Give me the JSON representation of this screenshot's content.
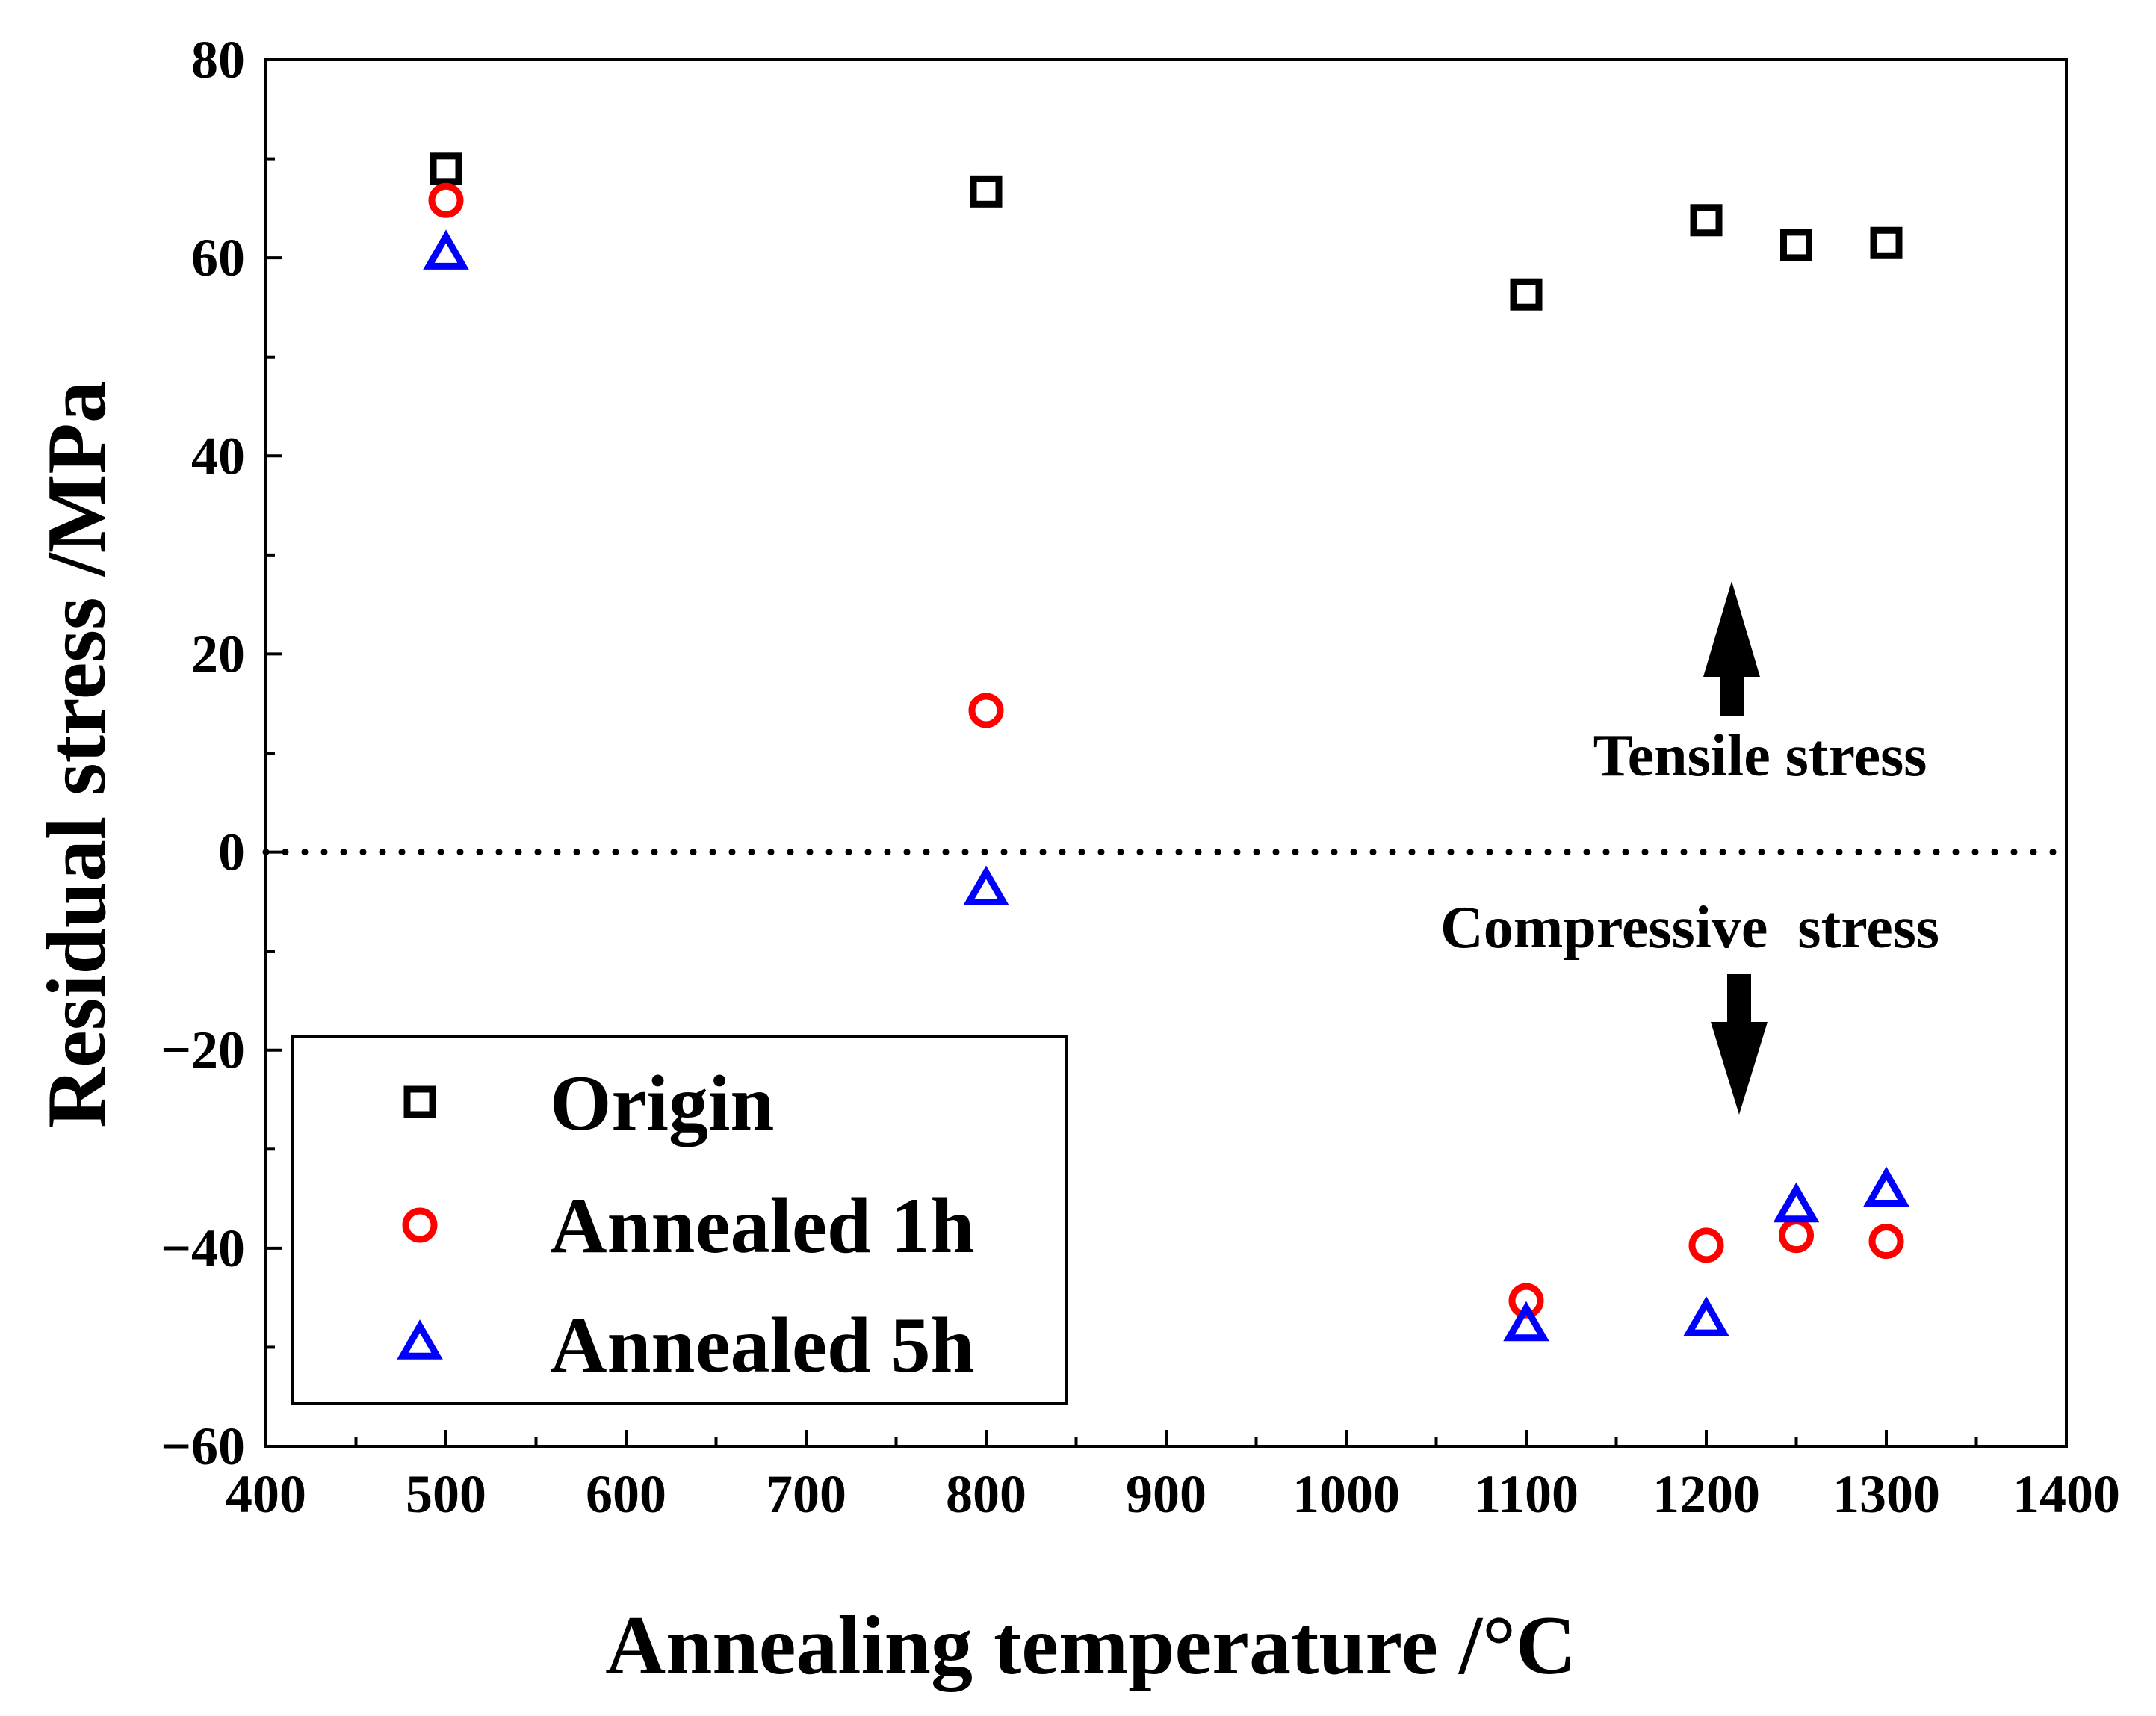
{
  "chart_data": {
    "type": "scatter",
    "xlabel": "Annealing temperature  /°C",
    "ylabel": "Residual stress /MPa",
    "xlim": [
      400,
      1400
    ],
    "ylim": [
      -60,
      80
    ],
    "x_major_ticks": [
      400,
      500,
      600,
      700,
      800,
      900,
      1000,
      1100,
      1200,
      1300,
      1400
    ],
    "x_minor_step": 50,
    "y_major_ticks": [
      -60,
      -40,
      -20,
      0,
      20,
      40,
      60,
      80
    ],
    "y_tick_labels": [
      "−60",
      "−40",
      "−20",
      "0",
      "20",
      "40",
      "60",
      "80"
    ],
    "y_minor_step": 10,
    "reference_line": {
      "y": 0,
      "style": "dotted"
    },
    "legend_position": "bottom-left",
    "series": [
      {
        "name": "Origin",
        "marker": "square",
        "color": "#000000",
        "points": [
          [
            500,
            69
          ],
          [
            800,
            66.7
          ],
          [
            1100,
            56.3
          ],
          [
            1200,
            63.8
          ],
          [
            1250,
            61.3
          ],
          [
            1300,
            61.5
          ]
        ]
      },
      {
        "name": "Annealed 1h",
        "marker": "circle",
        "color": "#ff0000",
        "points": [
          [
            500,
            65.8
          ],
          [
            800,
            14.3
          ],
          [
            1100,
            -45.3
          ],
          [
            1200,
            -39.7
          ],
          [
            1250,
            -38.7
          ],
          [
            1300,
            -39.3
          ]
        ]
      },
      {
        "name": "Annealed 5h",
        "marker": "triangle",
        "color": "#0000ff",
        "points": [
          [
            500,
            60.3
          ],
          [
            800,
            -3.9
          ],
          [
            1100,
            -47.9
          ],
          [
            1200,
            -47.4
          ],
          [
            1250,
            -35.9
          ],
          [
            1300,
            -34.3
          ]
        ]
      }
    ],
    "annotations": [
      {
        "text": "Tensile stress",
        "arrow": "up"
      },
      {
        "text": "Compressive  stress",
        "arrow": "down"
      }
    ]
  }
}
